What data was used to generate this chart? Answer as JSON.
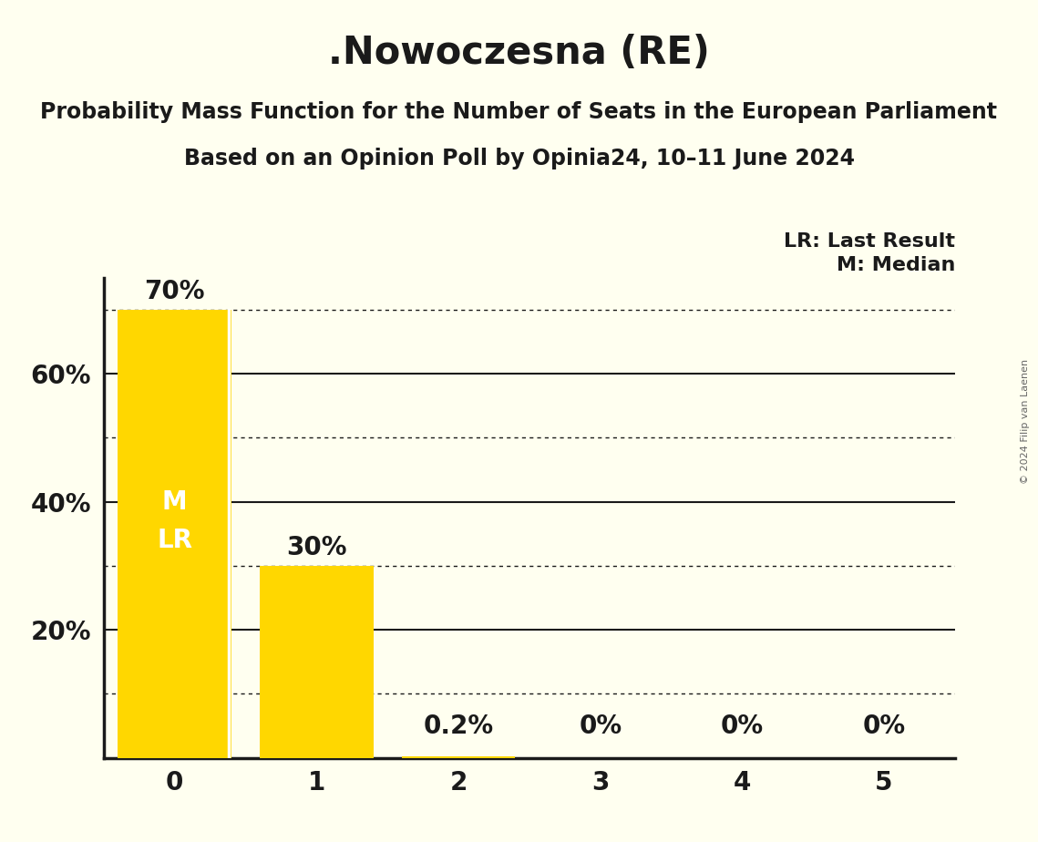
{
  "title": ".Nowoczesna (RE)",
  "subtitle1": "Probability Mass Function for the Number of Seats in the European Parliament",
  "subtitle2": "Based on an Opinion Poll by Opinia24, 10–11 June 2024",
  "copyright": "© 2024 Filip van Laenen",
  "categories": [
    0,
    1,
    2,
    3,
    4,
    5
  ],
  "values": [
    0.7,
    0.3,
    0.002,
    0.0,
    0.0,
    0.0
  ],
  "bar_labels": [
    "70%",
    "30%",
    "0.2%",
    "0%",
    "0%",
    "0%"
  ],
  "bar_color": "#FFD700",
  "background_color": "#FFFFF0",
  "text_color": "#1a1a1a",
  "white_color": "#FFFFFF",
  "ylim_max": 0.75,
  "solid_yticks": [
    0.2,
    0.4,
    0.6
  ],
  "dotted_yticks": [
    0.1,
    0.3,
    0.5,
    0.7
  ],
  "displayed_yticks": [
    0.2,
    0.4,
    0.6
  ],
  "displayed_ytick_labels": [
    "20%",
    "40%",
    "60%"
  ],
  "legend_lr": "LR: Last Result",
  "legend_m": "M: Median",
  "title_fontsize": 30,
  "subtitle1_fontsize": 17,
  "subtitle2_fontsize": 17,
  "tick_fontsize": 20,
  "bar_label_fontsize": 20,
  "legend_fontsize": 16,
  "ml_fontsize": 20
}
